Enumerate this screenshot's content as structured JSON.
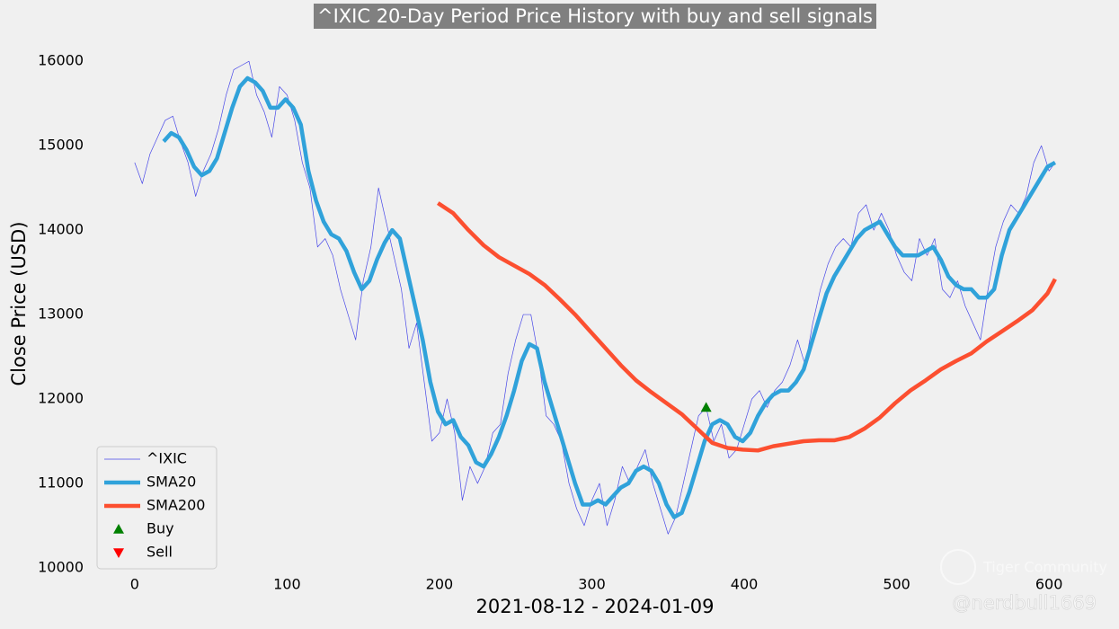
{
  "chart_data": {
    "type": "line",
    "title": "^IXIC 20-Day Period Price History with buy and sell signals",
    "xlabel": "2021-08-12 - 2024-01-09",
    "ylabel": "Close Price (USD)",
    "watermark": [
      "Tiger Community",
      "@nerdbull1669"
    ],
    "xlim": [
      -30,
      630
    ],
    "ylim": [
      9850,
      16300
    ],
    "xticks": [
      0,
      100,
      200,
      300,
      400,
      500,
      600
    ],
    "yticks": [
      10000,
      11000,
      12000,
      13000,
      14000,
      15000,
      16000
    ],
    "grid": false,
    "legend": "lower left",
    "series": [
      {
        "name": "^IXIC",
        "color": "#4848e8",
        "width": 0.7,
        "x": [
          0,
          5,
          10,
          15,
          20,
          25,
          30,
          35,
          40,
          45,
          50,
          55,
          60,
          65,
          70,
          75,
          80,
          85,
          90,
          95,
          100,
          105,
          110,
          115,
          120,
          125,
          130,
          135,
          140,
          145,
          150,
          155,
          160,
          165,
          170,
          175,
          180,
          185,
          190,
          195,
          200,
          205,
          210,
          215,
          220,
          225,
          230,
          235,
          240,
          245,
          250,
          255,
          260,
          265,
          270,
          275,
          280,
          285,
          290,
          295,
          300,
          305,
          310,
          315,
          320,
          325,
          330,
          335,
          340,
          345,
          350,
          355,
          360,
          365,
          370,
          375,
          380,
          385,
          390,
          395,
          400,
          405,
          410,
          415,
          420,
          425,
          430,
          435,
          440,
          445,
          450,
          455,
          460,
          465,
          470,
          475,
          480,
          485,
          490,
          495,
          500,
          505,
          510,
          515,
          520,
          525,
          530,
          535,
          540,
          545,
          550,
          555,
          560,
          565,
          570,
          575,
          580,
          585,
          590,
          595,
          600,
          604
        ],
        "values": [
          14800,
          14550,
          14900,
          15100,
          15300,
          15350,
          15050,
          14800,
          14400,
          14700,
          14900,
          15200,
          15600,
          15900,
          15950,
          16000,
          15600,
          15400,
          15100,
          15700,
          15600,
          15300,
          14800,
          14500,
          13800,
          13900,
          13700,
          13300,
          13000,
          12700,
          13400,
          13800,
          14500,
          14100,
          13700,
          13300,
          12600,
          12900,
          12200,
          11500,
          11600,
          12000,
          11600,
          10800,
          11200,
          11000,
          11200,
          11600,
          11700,
          12300,
          12700,
          13000,
          13000,
          12500,
          11800,
          11700,
          11500,
          11000,
          10700,
          10500,
          10800,
          11000,
          10500,
          10800,
          11200,
          11000,
          11200,
          11400,
          11000,
          10700,
          10400,
          10600,
          11000,
          11400,
          11800,
          11900,
          11500,
          11700,
          11300,
          11400,
          11700,
          12000,
          12100,
          11900,
          12100,
          12200,
          12400,
          12700,
          12400,
          12900,
          13300,
          13600,
          13800,
          13900,
          13800,
          14200,
          14300,
          14000,
          14200,
          14000,
          13700,
          13500,
          13400,
          13900,
          13700,
          13900,
          13300,
          13200,
          13400,
          13100,
          12900,
          12700,
          13300,
          13800,
          14100,
          14300,
          14200,
          14400,
          14800,
          15000,
          14700,
          14800
        ]
      },
      {
        "name": "SMA20",
        "color": "#30a2da",
        "width": 4.5,
        "x": [
          19,
          24,
          29,
          34,
          39,
          44,
          49,
          54,
          59,
          64,
          69,
          74,
          79,
          84,
          89,
          94,
          99,
          104,
          109,
          114,
          119,
          124,
          129,
          134,
          139,
          144,
          149,
          154,
          159,
          164,
          169,
          174,
          179,
          184,
          189,
          194,
          199,
          204,
          209,
          214,
          219,
          224,
          229,
          234,
          239,
          244,
          249,
          254,
          259,
          264,
          269,
          274,
          279,
          284,
          289,
          294,
          299,
          304,
          309,
          314,
          319,
          324,
          329,
          334,
          339,
          344,
          349,
          354,
          359,
          364,
          369,
          374,
          379,
          384,
          389,
          394,
          399,
          404,
          409,
          414,
          419,
          424,
          429,
          434,
          439,
          444,
          449,
          454,
          459,
          464,
          469,
          474,
          479,
          484,
          489,
          494,
          499,
          504,
          509,
          514,
          519,
          524,
          529,
          534,
          539,
          544,
          549,
          554,
          559,
          564,
          569,
          574,
          579,
          584,
          589,
          594,
          599,
          604
        ],
        "values": [
          15050,
          15150,
          15100,
          14950,
          14750,
          14650,
          14700,
          14850,
          15150,
          15450,
          15700,
          15800,
          15750,
          15650,
          15450,
          15450,
          15550,
          15450,
          15250,
          14700,
          14350,
          14100,
          13950,
          13900,
          13750,
          13500,
          13300,
          13400,
          13650,
          13850,
          14000,
          13900,
          13500,
          13100,
          12700,
          12200,
          11850,
          11700,
          11750,
          11550,
          11450,
          11250,
          11200,
          11350,
          11550,
          11800,
          12100,
          12450,
          12650,
          12600,
          12200,
          11900,
          11600,
          11300,
          11000,
          10750,
          10750,
          10800,
          10750,
          10850,
          10950,
          11000,
          11150,
          11200,
          11150,
          11000,
          10750,
          10600,
          10650,
          10900,
          11200,
          11500,
          11700,
          11750,
          11700,
          11550,
          11500,
          11600,
          11800,
          11950,
          12050,
          12100,
          12100,
          12200,
          12350,
          12650,
          12950,
          13250,
          13450,
          13600,
          13750,
          13900,
          14000,
          14050,
          14100,
          13950,
          13800,
          13700,
          13700,
          13700,
          13750,
          13800,
          13650,
          13450,
          13350,
          13300,
          13300,
          13200,
          13200,
          13300,
          13700,
          14000,
          14150,
          14300,
          14450,
          14600,
          14750,
          14800
        ]
      },
      {
        "name": "SMA200",
        "color": "#fc4f30",
        "width": 4.5,
        "x": [
          199,
          209,
          219,
          229,
          239,
          249,
          259,
          269,
          279,
          289,
          299,
          309,
          319,
          329,
          339,
          349,
          359,
          369,
          379,
          389,
          399,
          409,
          419,
          429,
          439,
          449,
          459,
          469,
          479,
          489,
          499,
          509,
          519,
          529,
          539,
          549,
          559,
          569,
          579,
          589,
          599,
          604
        ],
        "values": [
          14320,
          14200,
          14000,
          13820,
          13680,
          13580,
          13480,
          13350,
          13180,
          13000,
          12800,
          12600,
          12400,
          12220,
          12080,
          11950,
          11820,
          11650,
          11480,
          11420,
          11400,
          11390,
          11440,
          11470,
          11500,
          11510,
          11510,
          11550,
          11650,
          11780,
          11950,
          12100,
          12220,
          12350,
          12450,
          12540,
          12680,
          12800,
          12920,
          13050,
          13250,
          13420
        ]
      },
      {
        "name": "Buy",
        "type": "scatter",
        "marker": "^",
        "color": "#008000",
        "x": [
          375
        ],
        "values": [
          11900
        ]
      },
      {
        "name": "Sell",
        "type": "scatter",
        "marker": "v",
        "color": "#ff0000",
        "x": [],
        "values": []
      }
    ]
  }
}
